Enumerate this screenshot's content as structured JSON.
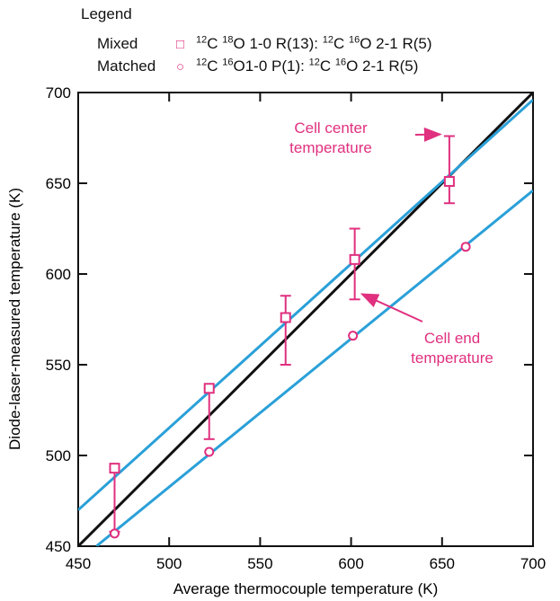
{
  "legend": {
    "title": "Legend",
    "entries": [
      {
        "label": "Mixed",
        "marker": "square",
        "desc": [
          {
            "sup": "12",
            "t": "C "
          },
          {
            "sup": "18",
            "t": "O 1-0 R(13): "
          },
          {
            "sup": "12",
            "t": "C "
          },
          {
            "sup": "16",
            "t": "O 2-1 R(5)"
          }
        ]
      },
      {
        "label": "Matched",
        "marker": "circle",
        "desc": [
          {
            "sup": "12",
            "t": "C "
          },
          {
            "sup": "16",
            "t": "O1-0 P(1): "
          },
          {
            "sup": "12",
            "t": "C "
          },
          {
            "sup": "16",
            "t": "O 2-1 R(5)"
          }
        ]
      }
    ]
  },
  "colors": {
    "series": "#e0307f",
    "fit": "#2aa0d8",
    "identity": "#111111"
  },
  "chart_data": {
    "type": "scatter",
    "xlabel": "Average thermocouple temperature (K)",
    "ylabel": "Diode-laser-measured temperature (K)",
    "xlim": [
      450,
      700
    ],
    "ylim": [
      450,
      700
    ],
    "xticks": [
      450,
      500,
      550,
      600,
      650,
      700
    ],
    "yticks": [
      450,
      500,
      550,
      600,
      650,
      700
    ],
    "series": [
      {
        "name": "Mixed",
        "marker": "square",
        "points": [
          {
            "x": 470,
            "y": 493,
            "err_lo": 458,
            "err_hi": 493
          },
          {
            "x": 522,
            "y": 537,
            "err_lo": 509,
            "err_hi": 537
          },
          {
            "x": 564,
            "y": 576,
            "err_lo": 550,
            "err_hi": 588
          },
          {
            "x": 602,
            "y": 608,
            "err_lo": 586,
            "err_hi": 625
          },
          {
            "x": 654,
            "y": 651,
            "err_lo": 639,
            "err_hi": 676
          }
        ]
      },
      {
        "name": "Matched",
        "marker": "circle",
        "points": [
          {
            "x": 470,
            "y": 457
          },
          {
            "x": 522,
            "y": 502
          },
          {
            "x": 601,
            "y": 566
          },
          {
            "x": 663,
            "y": 615
          }
        ]
      }
    ],
    "lines": [
      {
        "kind": "identity",
        "x1": 450,
        "y1": 450,
        "x2": 700,
        "y2": 700
      },
      {
        "kind": "fit-mixed",
        "x1": 450,
        "y1": 470,
        "x2": 700,
        "y2": 696
      },
      {
        "kind": "fit-matched",
        "x1": 460,
        "y1": 450,
        "x2": 700,
        "y2": 646
      }
    ],
    "annotations": [
      {
        "text": [
          "Cell center",
          "temperature"
        ],
        "arrow_to": [
          652,
          676
        ]
      },
      {
        "text": [
          "Cell end",
          "temperature"
        ],
        "arrow_to": [
          603,
          586
        ]
      }
    ]
  }
}
